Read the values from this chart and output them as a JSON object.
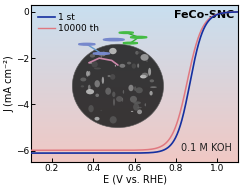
{
  "title": "FeCo-SNC",
  "xlabel": "E (V vs. RHE)",
  "ylabel": "J (mA cm⁻²)",
  "annotation": "0.1 M KOH",
  "legend_1st": "1 st",
  "legend_10000th": "10000 th",
  "xlim": [
    0.1,
    1.1
  ],
  "ylim": [
    -6.5,
    0.3
  ],
  "xticks": [
    0.2,
    0.4,
    0.6,
    0.8,
    1.0
  ],
  "yticks": [
    0,
    -2,
    -4,
    -6
  ],
  "color_1st": "#1530a0",
  "color_10000th": "#e07880",
  "bg_top_color": "#f0c8c4",
  "bg_bottom_color": "#c8dff0",
  "limiting_current": -6.1,
  "figsize": [
    2.43,
    1.89
  ],
  "dpi": 100
}
